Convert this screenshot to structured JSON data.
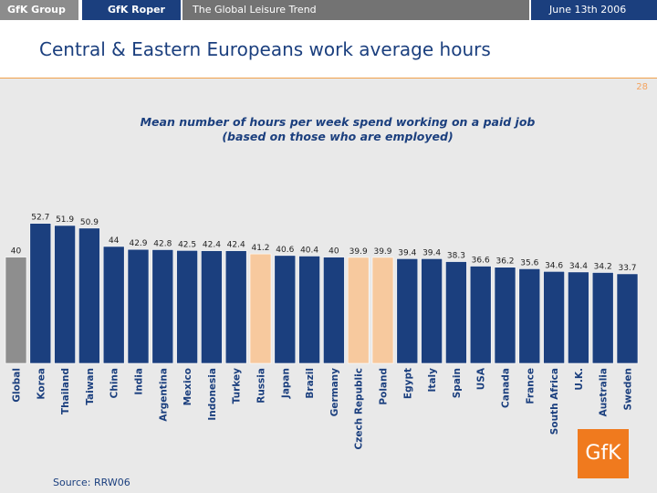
{
  "header": {
    "tab_group": "GfK Group",
    "tab_roper": "GfK Roper",
    "tab_trend": "The Global Leisure Trend",
    "date": "June 13th 2006"
  },
  "slide": {
    "headline": "Central & Eastern Europeans work average hours",
    "page_number": "28",
    "source": "Source: RRW06",
    "logo_text": "GfK"
  },
  "colors": {
    "bar_default": "#1b3f7e",
    "bar_global": "#8e8e8e",
    "bar_highlight": "#f7c99e",
    "value_label": "#222222",
    "category_label": "#1b3f7e"
  },
  "chart_data": {
    "type": "bar",
    "title": "Mean number of hours per week spend working on a paid job",
    "subtitle": "(based on those who are employed)",
    "xlabel": "",
    "ylabel": "",
    "grid": false,
    "legend": "none",
    "categories": [
      "Global",
      "Korea",
      "Thailand",
      "Taiwan",
      "China",
      "India",
      "Argentina",
      "Mexico",
      "Indonesia",
      "Turkey",
      "Russia",
      "Japan",
      "Brazil",
      "Germany",
      "Czech Republic",
      "Poland",
      "Egypt",
      "Italy",
      "Spain",
      "USA",
      "Canada",
      "France",
      "South Africa",
      "U.K.",
      "Australia",
      "Sweden"
    ],
    "values": [
      40,
      52.7,
      51.9,
      50.9,
      44,
      42.9,
      42.8,
      42.5,
      42.4,
      42.4,
      41.2,
      40.6,
      40.4,
      40,
      39.9,
      39.9,
      39.4,
      39.4,
      38.3,
      36.6,
      36.2,
      35.6,
      34.6,
      34.4,
      34.2,
      33.7
    ],
    "value_labels": [
      "40",
      "52.7",
      "51.9",
      "50.9",
      "44",
      "42.9",
      "42.8",
      "42.5",
      "42.4",
      "42.4",
      "41.2",
      "40.6",
      "40.4",
      "40",
      "39.9",
      "39.9",
      "39.4",
      "39.4",
      "38.3",
      "36.6",
      "36.2",
      "35.6",
      "34.6",
      "34.4",
      "34.2",
      "33.7"
    ],
    "highlighted": [
      "Russia",
      "Czech Republic",
      "Poland"
    ],
    "baseline_category": "Global"
  }
}
